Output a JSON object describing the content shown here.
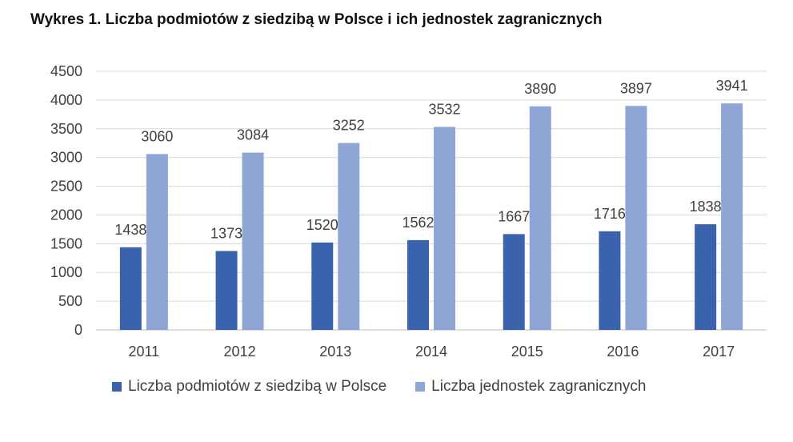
{
  "title": "Wykres 1. Liczba podmiotów z siedzibą w Polsce i ich jednostek zagranicznych",
  "colors": {
    "series1": "#3B63AD",
    "series2": "#8FA5D6",
    "grid": "#d9d9d9",
    "axis": "#bfbfbf"
  },
  "chart_data": {
    "type": "bar",
    "title": "Wykres 1. Liczba podmiotów z siedzibą w Polsce i ich jednostek zagranicznych",
    "categories": [
      "2011",
      "2012",
      "2013",
      "2014",
      "2015",
      "2016",
      "2017"
    ],
    "series": [
      {
        "name": "Liczba podmiotów z siedzibą w Polsce",
        "values": [
          1438,
          1373,
          1520,
          1562,
          1667,
          1716,
          1838
        ]
      },
      {
        "name": "Liczba jednostek zagranicznych",
        "values": [
          3060,
          3084,
          3252,
          3532,
          3890,
          3897,
          3941
        ]
      }
    ],
    "ylim": [
      0,
      4500
    ],
    "yticks": [
      0,
      500,
      1000,
      1500,
      2000,
      2500,
      3000,
      3500,
      4000,
      4500
    ],
    "grid": true,
    "legend_position": "bottom",
    "data_labels": true
  }
}
